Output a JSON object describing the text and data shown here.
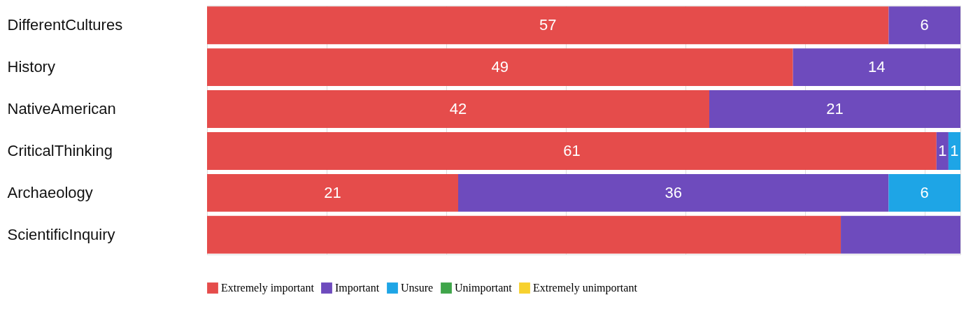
{
  "chart_data": {
    "type": "bar",
    "orientation": "horizontal",
    "stacked": true,
    "categories": [
      "DifferentCultures",
      "History",
      "NativeAmerican",
      "CriticalThinking",
      "Archaeology",
      "ScientificInquiry"
    ],
    "series": [
      {
        "name": "Extremely important",
        "color": "#e54c4b",
        "values": [
          57,
          49,
          42,
          61,
          21,
          53
        ],
        "value_labels": [
          "57",
          "49",
          "42",
          "61",
          "21",
          null
        ]
      },
      {
        "name": "Important",
        "color": "#6e4bbd",
        "values": [
          6,
          14,
          21,
          1,
          36,
          10
        ],
        "value_labels": [
          "6",
          "14",
          "21",
          "1",
          "36",
          null
        ]
      },
      {
        "name": "Unsure",
        "color": "#1ea5e6",
        "values": [
          null,
          null,
          null,
          1,
          6,
          null
        ],
        "value_labels": [
          null,
          null,
          null,
          "1",
          "6",
          null
        ]
      },
      {
        "name": "Unimportant",
        "color": "#3fa54a",
        "values": [
          null,
          null,
          null,
          null,
          null,
          null
        ]
      },
      {
        "name": "Extremely unimportant",
        "color": "#f7d12e",
        "values": [
          null,
          null,
          null,
          null,
          null,
          null
        ]
      }
    ],
    "xlim": [
      0,
      63
    ],
    "xticks": [
      {
        "value": 0,
        "label": null
      },
      {
        "value": 10,
        "label": null
      },
      {
        "value": 20,
        "label": null
      },
      {
        "value": 30,
        "label": null
      },
      {
        "value": 40,
        "label": null
      },
      {
        "value": 50,
        "label": null
      },
      {
        "value": 60,
        "label": null
      }
    ],
    "tick_labels": "y",
    "grid": "x",
    "legend": "bottom"
  }
}
